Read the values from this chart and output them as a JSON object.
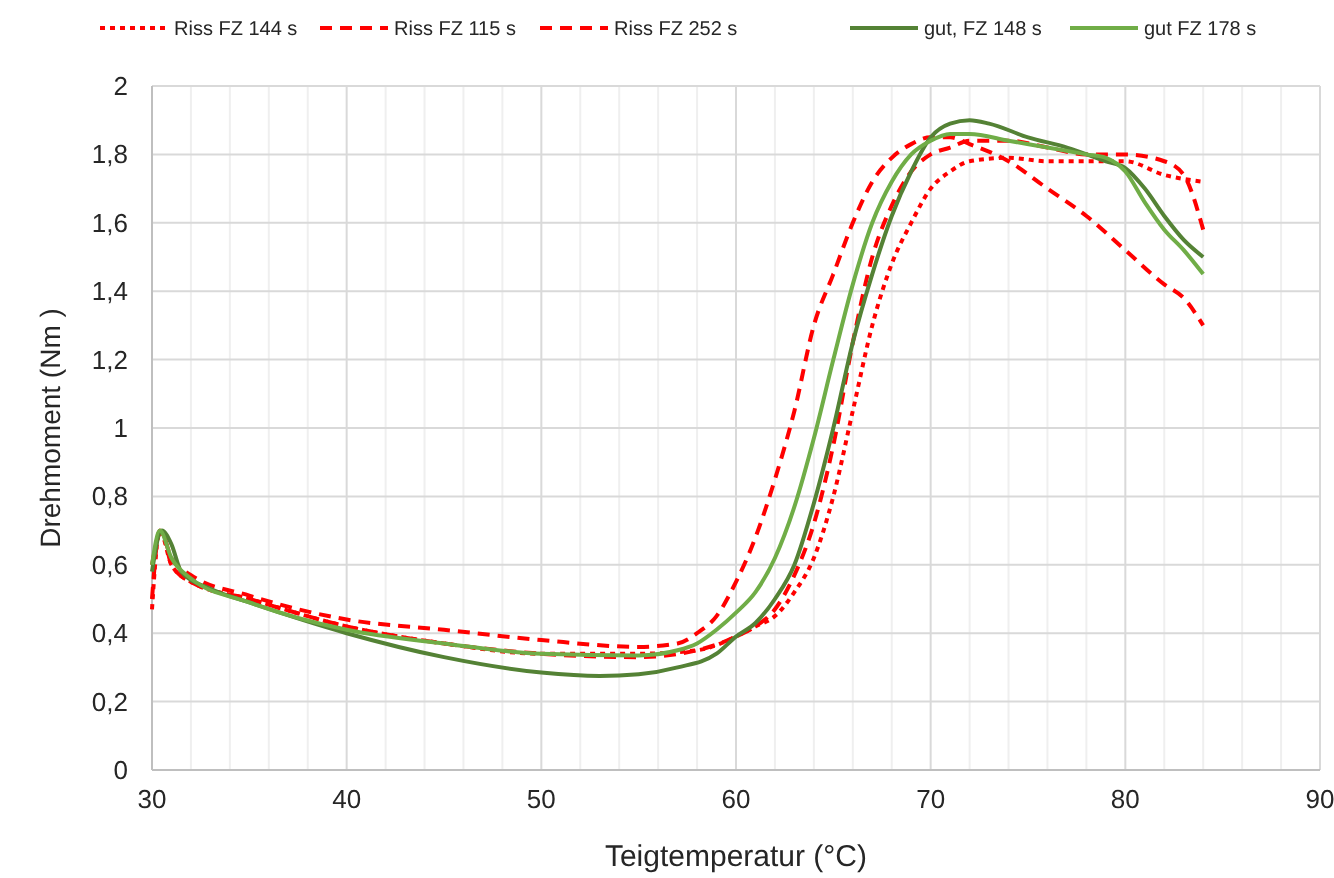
{
  "chart_data": {
    "type": "line",
    "xlabel": "Teigtemperatur (°C)",
    "ylabel": "Drehmoment (Nm )",
    "xlim": [
      30,
      90
    ],
    "ylim": [
      0,
      2
    ],
    "xticks": [
      30,
      {
        "value": 32,
        "label": null
      },
      {
        "value": 34,
        "label": null
      },
      {
        "value": 36,
        "label": null
      },
      {
        "value": 38,
        "label": null
      },
      40,
      {
        "value": 42,
        "label": null
      },
      {
        "value": 44,
        "label": null
      },
      {
        "value": 46,
        "label": null
      },
      {
        "value": 48,
        "label": null
      },
      50,
      {
        "value": 52,
        "label": null
      },
      {
        "value": 54,
        "label": null
      },
      {
        "value": 56,
        "label": null
      },
      {
        "value": 58,
        "label": null
      },
      60,
      {
        "value": 62,
        "label": null
      },
      {
        "value": 64,
        "label": null
      },
      {
        "value": 66,
        "label": null
      },
      {
        "value": 68,
        "label": null
      },
      70,
      {
        "value": 72,
        "label": null
      },
      {
        "value": 74,
        "label": null
      },
      {
        "value": 76,
        "label": null
      },
      {
        "value": 78,
        "label": null
      },
      80,
      {
        "value": 82,
        "label": null
      },
      {
        "value": 84,
        "label": null
      },
      {
        "value": 86,
        "label": null
      },
      {
        "value": 88,
        "label": null
      },
      90
    ],
    "yticks": [
      {
        "value": 0,
        "label": "0"
      },
      {
        "value": 0.2,
        "label": "0,2"
      },
      {
        "value": 0.4,
        "label": "0,4"
      },
      {
        "value": 0.6,
        "label": "0,6"
      },
      {
        "value": 0.8,
        "label": "0,8"
      },
      {
        "value": 1,
        "label": "1"
      },
      {
        "value": 1.2,
        "label": "1,2"
      },
      {
        "value": 1.4,
        "label": "1,4"
      },
      {
        "value": 1.6,
        "label": "1,6"
      },
      {
        "value": 1.8,
        "label": "1,8"
      },
      {
        "value": 2,
        "label": "2"
      }
    ],
    "grid": true,
    "legend": "top",
    "series": [
      {
        "name": "Riss FZ 144 s",
        "color": "#ff0000",
        "line_style": "dotted",
        "x": [
          30,
          30.4,
          31,
          32,
          35,
          40,
          45,
          50,
          55,
          58,
          60,
          61,
          62,
          63,
          64,
          65,
          66,
          67,
          68,
          69,
          70,
          71,
          72,
          74,
          76,
          78,
          80,
          82,
          84
        ],
        "values": [
          0.47,
          0.7,
          0.6,
          0.55,
          0.5,
          0.42,
          0.37,
          0.34,
          0.34,
          0.35,
          0.39,
          0.42,
          0.45,
          0.52,
          0.62,
          0.8,
          1.05,
          1.3,
          1.48,
          1.6,
          1.7,
          1.75,
          1.78,
          1.79,
          1.78,
          1.78,
          1.78,
          1.74,
          1.72
        ]
      },
      {
        "name": "Riss FZ 115 s",
        "color": "#ff0000",
        "line_style": "dashed",
        "x": [
          30,
          30.4,
          31,
          32,
          35,
          40,
          45,
          50,
          55,
          57,
          58,
          59,
          60,
          61,
          62,
          63,
          64,
          65,
          66,
          67,
          68,
          69,
          70,
          71,
          72,
          74,
          76,
          78,
          80,
          82,
          83,
          84
        ],
        "values": [
          0.5,
          0.7,
          0.62,
          0.57,
          0.51,
          0.44,
          0.41,
          0.38,
          0.36,
          0.37,
          0.4,
          0.45,
          0.55,
          0.68,
          0.85,
          1.05,
          1.3,
          1.45,
          1.6,
          1.72,
          1.79,
          1.83,
          1.85,
          1.85,
          1.83,
          1.78,
          1.7,
          1.62,
          1.52,
          1.42,
          1.38,
          1.3
        ]
      },
      {
        "name": "Riss FZ 252 s",
        "color": "#ff0000",
        "line_style": "dashed",
        "x": [
          30,
          30.5,
          31,
          32,
          35,
          40,
          45,
          50,
          55,
          58,
          60,
          61,
          62,
          63,
          64,
          65,
          66,
          67,
          68,
          69,
          70,
          71,
          72,
          74,
          76,
          78,
          80,
          82,
          83,
          84
        ],
        "values": [
          0.6,
          0.7,
          0.6,
          0.55,
          0.5,
          0.42,
          0.37,
          0.34,
          0.33,
          0.35,
          0.39,
          0.42,
          0.47,
          0.57,
          0.72,
          0.95,
          1.25,
          1.5,
          1.65,
          1.75,
          1.8,
          1.82,
          1.84,
          1.84,
          1.82,
          1.8,
          1.8,
          1.78,
          1.74,
          1.58
        ]
      },
      {
        "name": "gut, FZ 148 s",
        "color": "#548235",
        "line_style": "solid",
        "x": [
          30,
          30.5,
          31,
          31.5,
          33,
          35,
          40,
          45,
          50,
          53,
          55,
          57,
          59,
          60,
          61,
          62,
          63,
          64,
          65,
          66,
          67,
          68,
          69,
          70,
          71,
          72,
          73,
          75,
          77,
          79,
          80,
          81,
          82,
          83,
          84
        ],
        "values": [
          0.58,
          0.7,
          0.66,
          0.58,
          0.53,
          0.49,
          0.4,
          0.33,
          0.285,
          0.275,
          0.28,
          0.3,
          0.34,
          0.39,
          0.43,
          0.5,
          0.6,
          0.78,
          1,
          1.25,
          1.45,
          1.62,
          1.75,
          1.85,
          1.89,
          1.9,
          1.89,
          1.85,
          1.82,
          1.78,
          1.76,
          1.7,
          1.62,
          1.55,
          1.5
        ]
      },
      {
        "name": "gut FZ 178 s",
        "color": "#70ad47",
        "line_style": "solid",
        "x": [
          30,
          30.4,
          31,
          32,
          35,
          40,
          45,
          50,
          55,
          57,
          58,
          59,
          60,
          61,
          62,
          63,
          64,
          65,
          66,
          67,
          68,
          69,
          70,
          71,
          72,
          74,
          76,
          78,
          79,
          80,
          81,
          82,
          83,
          84
        ],
        "values": [
          0.6,
          0.7,
          0.62,
          0.56,
          0.49,
          0.41,
          0.37,
          0.34,
          0.335,
          0.35,
          0.37,
          0.41,
          0.46,
          0.52,
          0.62,
          0.77,
          0.97,
          1.2,
          1.42,
          1.6,
          1.72,
          1.8,
          1.84,
          1.86,
          1.86,
          1.84,
          1.82,
          1.8,
          1.79,
          1.75,
          1.66,
          1.58,
          1.52,
          1.45
        ]
      }
    ]
  }
}
